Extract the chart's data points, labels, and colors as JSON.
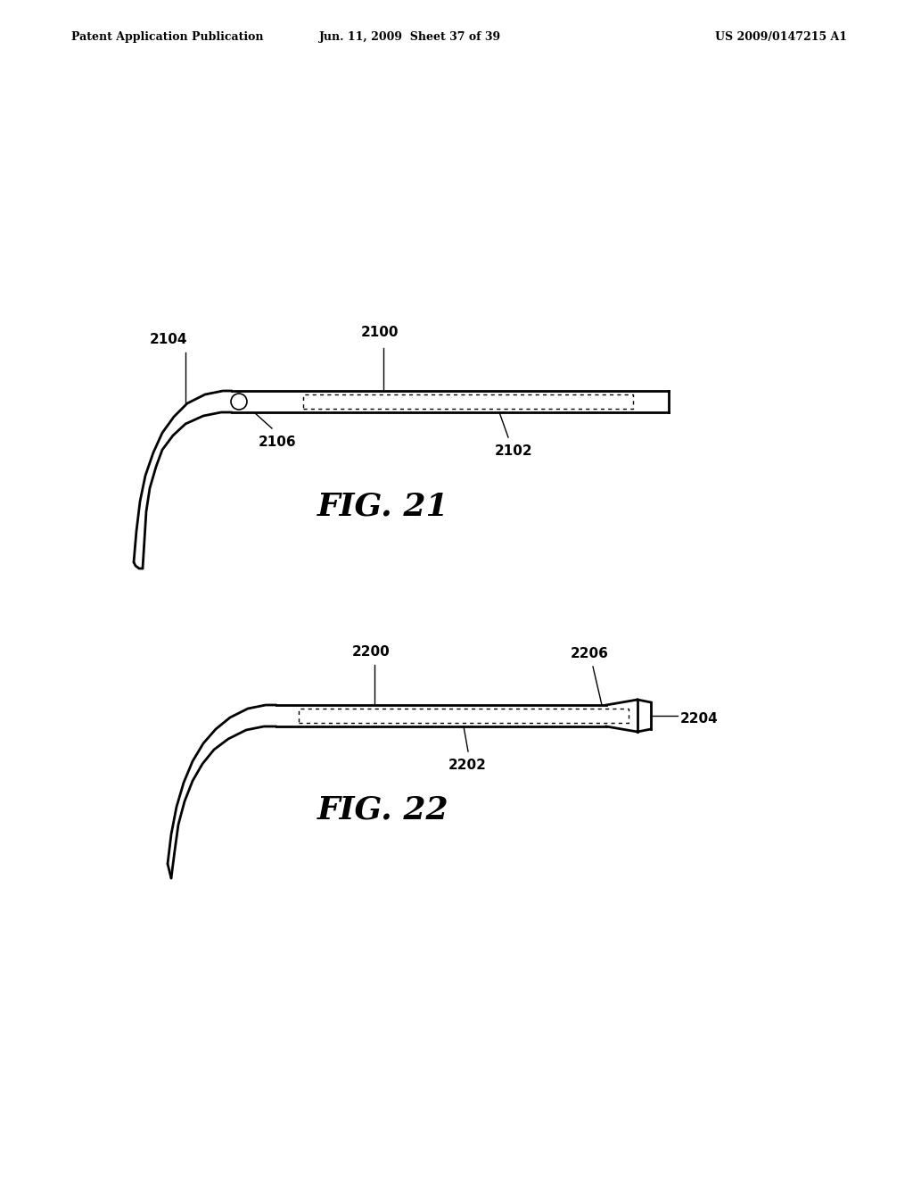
{
  "background_color": "#ffffff",
  "header_left": "Patent Application Publication",
  "header_mid": "Jun. 11, 2009  Sheet 37 of 39",
  "header_right": "US 2009/0147215 A1",
  "fig21_label": "FIG. 21",
  "fig22_label": "FIG. 22"
}
